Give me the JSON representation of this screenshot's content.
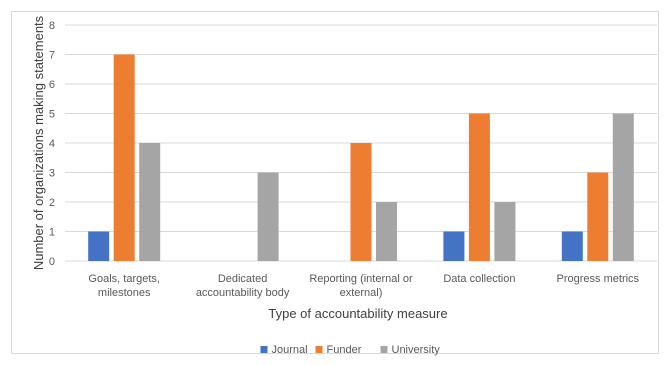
{
  "chart_data": {
    "type": "bar",
    "title": "",
    "xlabel": "Type of accountability measure",
    "ylabel": "Number of organizations making statements",
    "ylim": [
      0,
      8
    ],
    "yticks": [
      0,
      1,
      2,
      3,
      4,
      5,
      6,
      7,
      8
    ],
    "grid": true,
    "legend_position": "bottom",
    "categories": [
      [
        "Goals, targets,",
        "milestones"
      ],
      [
        "Dedicated",
        "accountability body"
      ],
      [
        "Reporting (internal or",
        "external)"
      ],
      [
        "Data collection"
      ],
      [
        "Progress metrics"
      ]
    ],
    "series": [
      {
        "name": "Journal",
        "color": "#4472c4",
        "values": [
          1,
          0,
          0,
          1,
          1
        ]
      },
      {
        "name": "Funder",
        "color": "#ed7d31",
        "values": [
          7,
          0,
          4,
          5,
          3
        ]
      },
      {
        "name": "University",
        "color": "#a5a5a5",
        "values": [
          4,
          3,
          2,
          2,
          5
        ]
      }
    ]
  }
}
